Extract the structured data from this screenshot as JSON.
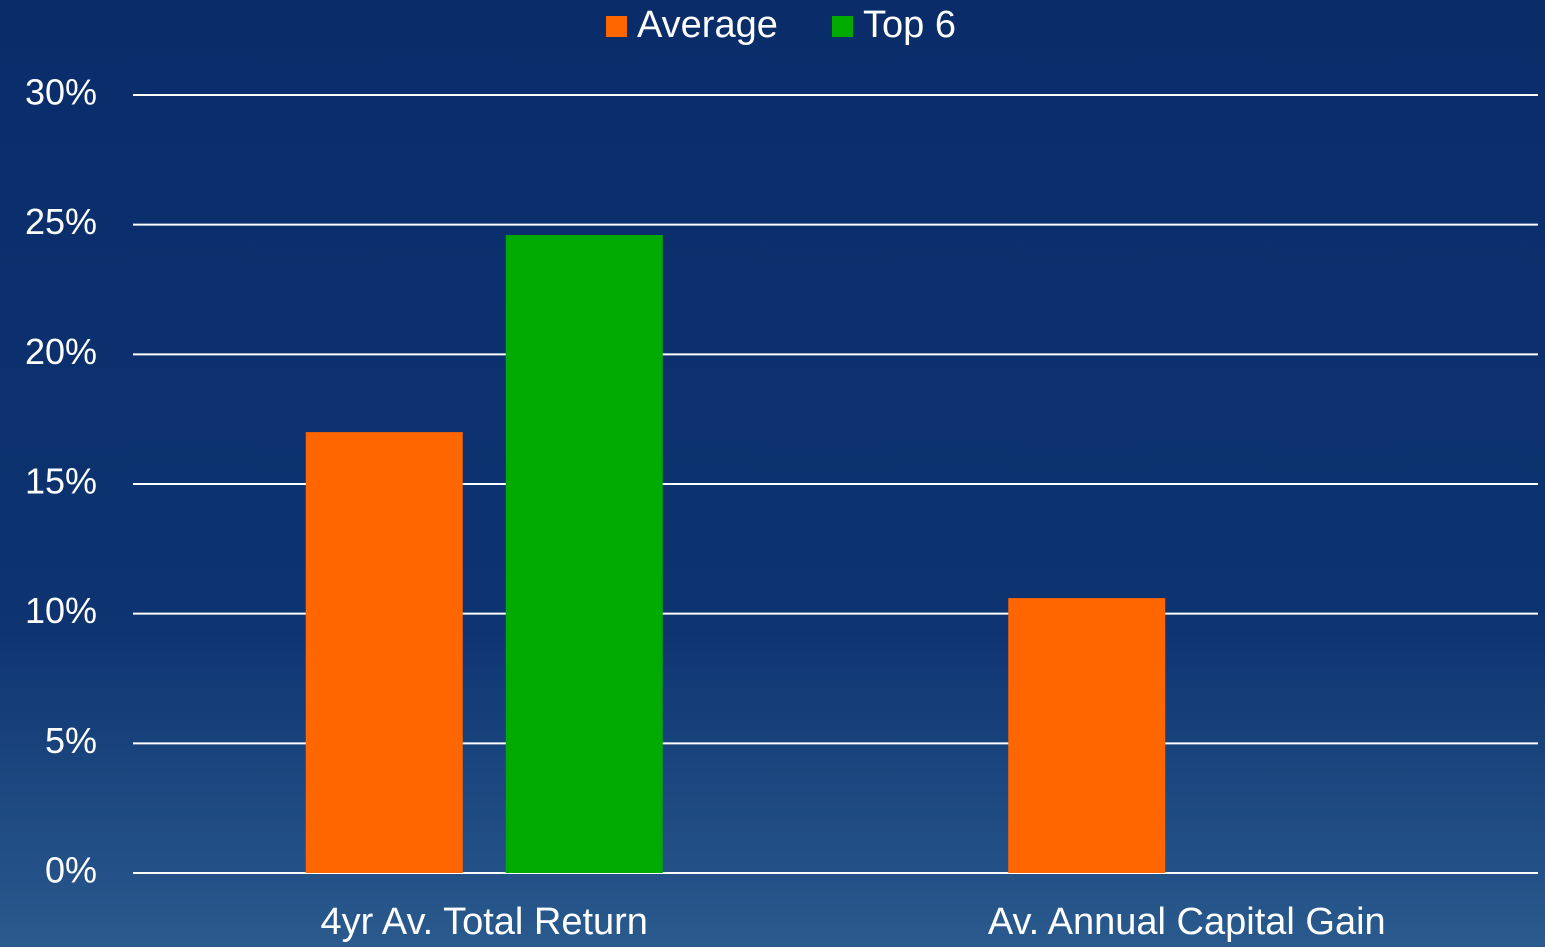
{
  "chart_data": {
    "type": "bar",
    "categories": [
      "4yr Av. Total Return",
      "Av. Annual Capital Gain"
    ],
    "series": [
      {
        "name": "Average",
        "color": "#ff6600",
        "values": [
          17,
          10.6
        ]
      },
      {
        "name": "Top 6",
        "color": "#00aa00",
        "values": [
          24.6,
          null
        ]
      }
    ],
    "ylim": [
      0,
      30
    ],
    "yticks": [
      {
        "value": 0,
        "label": "0%"
      },
      {
        "value": 5,
        "label": "5%"
      },
      {
        "value": 10,
        "label": "10%"
      },
      {
        "value": 15,
        "label": "15%"
      },
      {
        "value": 20,
        "label": "20%"
      },
      {
        "value": 25,
        "label": "25%"
      },
      {
        "value": 30,
        "label": "30%"
      }
    ],
    "grid": true,
    "legend": "top"
  }
}
